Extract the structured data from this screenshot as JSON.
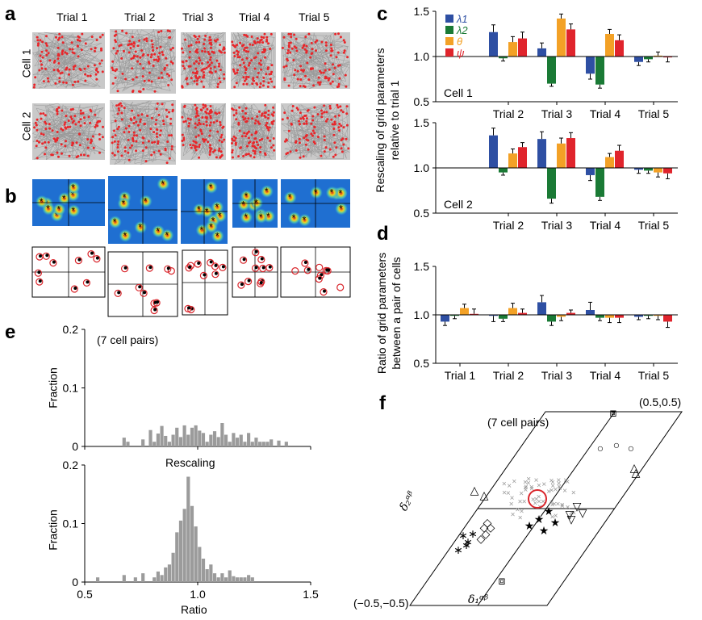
{
  "panels": {
    "a": {
      "label": "a",
      "columns": [
        "Trial 1",
        "Trial 2",
        "Trial 3",
        "Trial 4",
        "Trial 5"
      ],
      "rows": [
        "Cell 1",
        "Cell 2"
      ],
      "colors": {
        "trajectory": "#999999",
        "spikes": "#e8262a"
      }
    },
    "b": {
      "label": "b",
      "colors": {
        "map_low": "#1a6fd4",
        "map_high": "#d62418",
        "circle": "#d9252b",
        "star": "#000000"
      }
    },
    "c": {
      "label": "c",
      "cell1_label": "Cell 1",
      "cell2_label": "Cell 2"
    },
    "d": {
      "label": "d"
    },
    "e": {
      "label": "e",
      "note": "(7 cell pairs)"
    },
    "f": {
      "label": "f",
      "note": "(7 cell pairs)",
      "corner_top": "(0.5,0.5)",
      "corner_bottom": "(−0.5,−0.5)",
      "axis1": "δ₁ᵅᵝ",
      "axis2": "δ₂ᵅᵝ"
    }
  },
  "chart_data": [
    {
      "type": "bar",
      "panel": "c-cell1",
      "ylabel": "Rescaling of grid parameters relative to trial 1",
      "categories": [
        "Trial 2",
        "Trial 3",
        "Trial 4",
        "Trial 5"
      ],
      "baseline": 1.0,
      "ylim": [
        0.5,
        1.5
      ],
      "yticks": [
        "0.5",
        "1.0",
        "1.5"
      ],
      "legend": [
        "λ1",
        "λ2",
        "θ",
        "ψ"
      ],
      "colors": [
        "#2e4fa3",
        "#1a7a35",
        "#f3a126",
        "#e0242c"
      ],
      "series": [
        {
          "name": "λ1",
          "values": [
            1.27,
            1.09,
            0.81,
            0.94
          ],
          "errors": [
            0.08,
            0.06,
            0.06,
            0.04
          ]
        },
        {
          "name": "λ2",
          "values": [
            0.98,
            0.7,
            0.69,
            0.97
          ],
          "errors": [
            0.03,
            0.03,
            0.04,
            0.03
          ]
        },
        {
          "name": "θ",
          "values": [
            1.16,
            1.42,
            1.25,
            1.01
          ],
          "errors": [
            0.06,
            0.05,
            0.05,
            0.04
          ]
        },
        {
          "name": "ψ",
          "values": [
            1.2,
            1.3,
            1.18,
            0.99
          ],
          "errors": [
            0.07,
            0.06,
            0.06,
            0.05
          ]
        }
      ]
    },
    {
      "type": "bar",
      "panel": "c-cell2",
      "categories": [
        "Trial 2",
        "Trial 3",
        "Trial 4",
        "Trial 5"
      ],
      "baseline": 1.0,
      "ylim": [
        0.5,
        1.5
      ],
      "yticks": [
        "0.5",
        "1.0",
        "1.5"
      ],
      "series": [
        {
          "name": "λ1",
          "values": [
            1.36,
            1.32,
            0.92,
            0.98
          ],
          "errors": [
            0.08,
            0.08,
            0.06,
            0.04
          ]
        },
        {
          "name": "λ2",
          "values": [
            0.95,
            0.66,
            0.68,
            0.97
          ],
          "errors": [
            0.03,
            0.05,
            0.04,
            0.03
          ]
        },
        {
          "name": "θ",
          "values": [
            1.16,
            1.27,
            1.12,
            0.95
          ],
          "errors": [
            0.05,
            0.06,
            0.04,
            0.05
          ]
        },
        {
          "name": "ψ",
          "values": [
            1.23,
            1.33,
            1.19,
            0.94
          ],
          "errors": [
            0.05,
            0.06,
            0.06,
            0.06
          ]
        }
      ]
    },
    {
      "type": "bar",
      "panel": "d",
      "ylabel": "Ratio of grid parameters between a pair of cells",
      "categories": [
        "Trial 1",
        "Trial 2",
        "Trial 3",
        "Trial 4",
        "Trial 5"
      ],
      "baseline": 1.0,
      "ylim": [
        0.5,
        1.5
      ],
      "yticks": [
        "0.5",
        "1.0",
        "1.5"
      ],
      "series": [
        {
          "name": "λ1",
          "values": [
            0.93,
            0.99,
            1.13,
            1.05,
            0.98
          ],
          "errors": [
            0.04,
            0.06,
            0.07,
            0.08,
            0.03
          ]
        },
        {
          "name": "λ2",
          "values": [
            0.99,
            0.96,
            0.93,
            0.97,
            0.99
          ],
          "errors": [
            0.03,
            0.03,
            0.04,
            0.03,
            0.03
          ]
        },
        {
          "name": "θ",
          "values": [
            1.07,
            1.07,
            0.98,
            0.97,
            0.99
          ],
          "errors": [
            0.04,
            0.05,
            0.04,
            0.05,
            0.04
          ]
        },
        {
          "name": "ψ",
          "values": [
            1.01,
            1.02,
            1.02,
            0.97,
            0.93
          ],
          "errors": [
            0.05,
            0.04,
            0.03,
            0.05,
            0.06
          ]
        }
      ]
    },
    {
      "type": "bar",
      "panel": "e-top",
      "xlabel": "Rescaling",
      "ylabel": "Fraction",
      "xlim": [
        0.5,
        1.5
      ],
      "ylim": [
        0,
        0.2
      ],
      "yticks": [
        "0",
        "0.1",
        "0.2"
      ],
      "bin_start": 0.6,
      "bin_width": 0.0167,
      "values": [
        0,
        0,
        0,
        0,
        0.015,
        0.008,
        0,
        0,
        0,
        0.012,
        0,
        0.028,
        0.008,
        0.022,
        0.035,
        0.018,
        0.008,
        0.02,
        0.032,
        0.016,
        0.036,
        0.02,
        0.032,
        0.036,
        0.027,
        0.023,
        0.008,
        0.02,
        0.026,
        0.016,
        0.04,
        0.02,
        0.008,
        0.023,
        0.015,
        0.02,
        0.008,
        0.023,
        0.008,
        0.015,
        0.008,
        0.008,
        0.008,
        0.012,
        0,
        0.01,
        0,
        0.008
      ],
      "color": "#9b9b9b"
    },
    {
      "type": "bar",
      "panel": "e-bottom",
      "xlabel": "Ratio",
      "ylabel": "Fraction",
      "xlim": [
        0.5,
        1.5
      ],
      "ylim": [
        0,
        0.2
      ],
      "xticks": [
        "0.5",
        "1.0",
        "1.5"
      ],
      "yticks": [
        "0",
        "0.1",
        "0.2"
      ],
      "bin_start": 0.55,
      "bin_width": 0.0167,
      "values": [
        0.008,
        0,
        0,
        0,
        0,
        0,
        0,
        0.012,
        0,
        0,
        0.008,
        0,
        0.015,
        0,
        0,
        0.008,
        0.018,
        0.012,
        0.025,
        0.03,
        0.05,
        0.085,
        0.105,
        0.125,
        0.18,
        0.13,
        0.095,
        0.06,
        0.04,
        0.022,
        0.03,
        0.015,
        0.008,
        0.015,
        0.008,
        0.02,
        0.01,
        0.008,
        0.008,
        0.008,
        0.012,
        0.008
      ],
      "color": "#9b9b9b"
    }
  ]
}
